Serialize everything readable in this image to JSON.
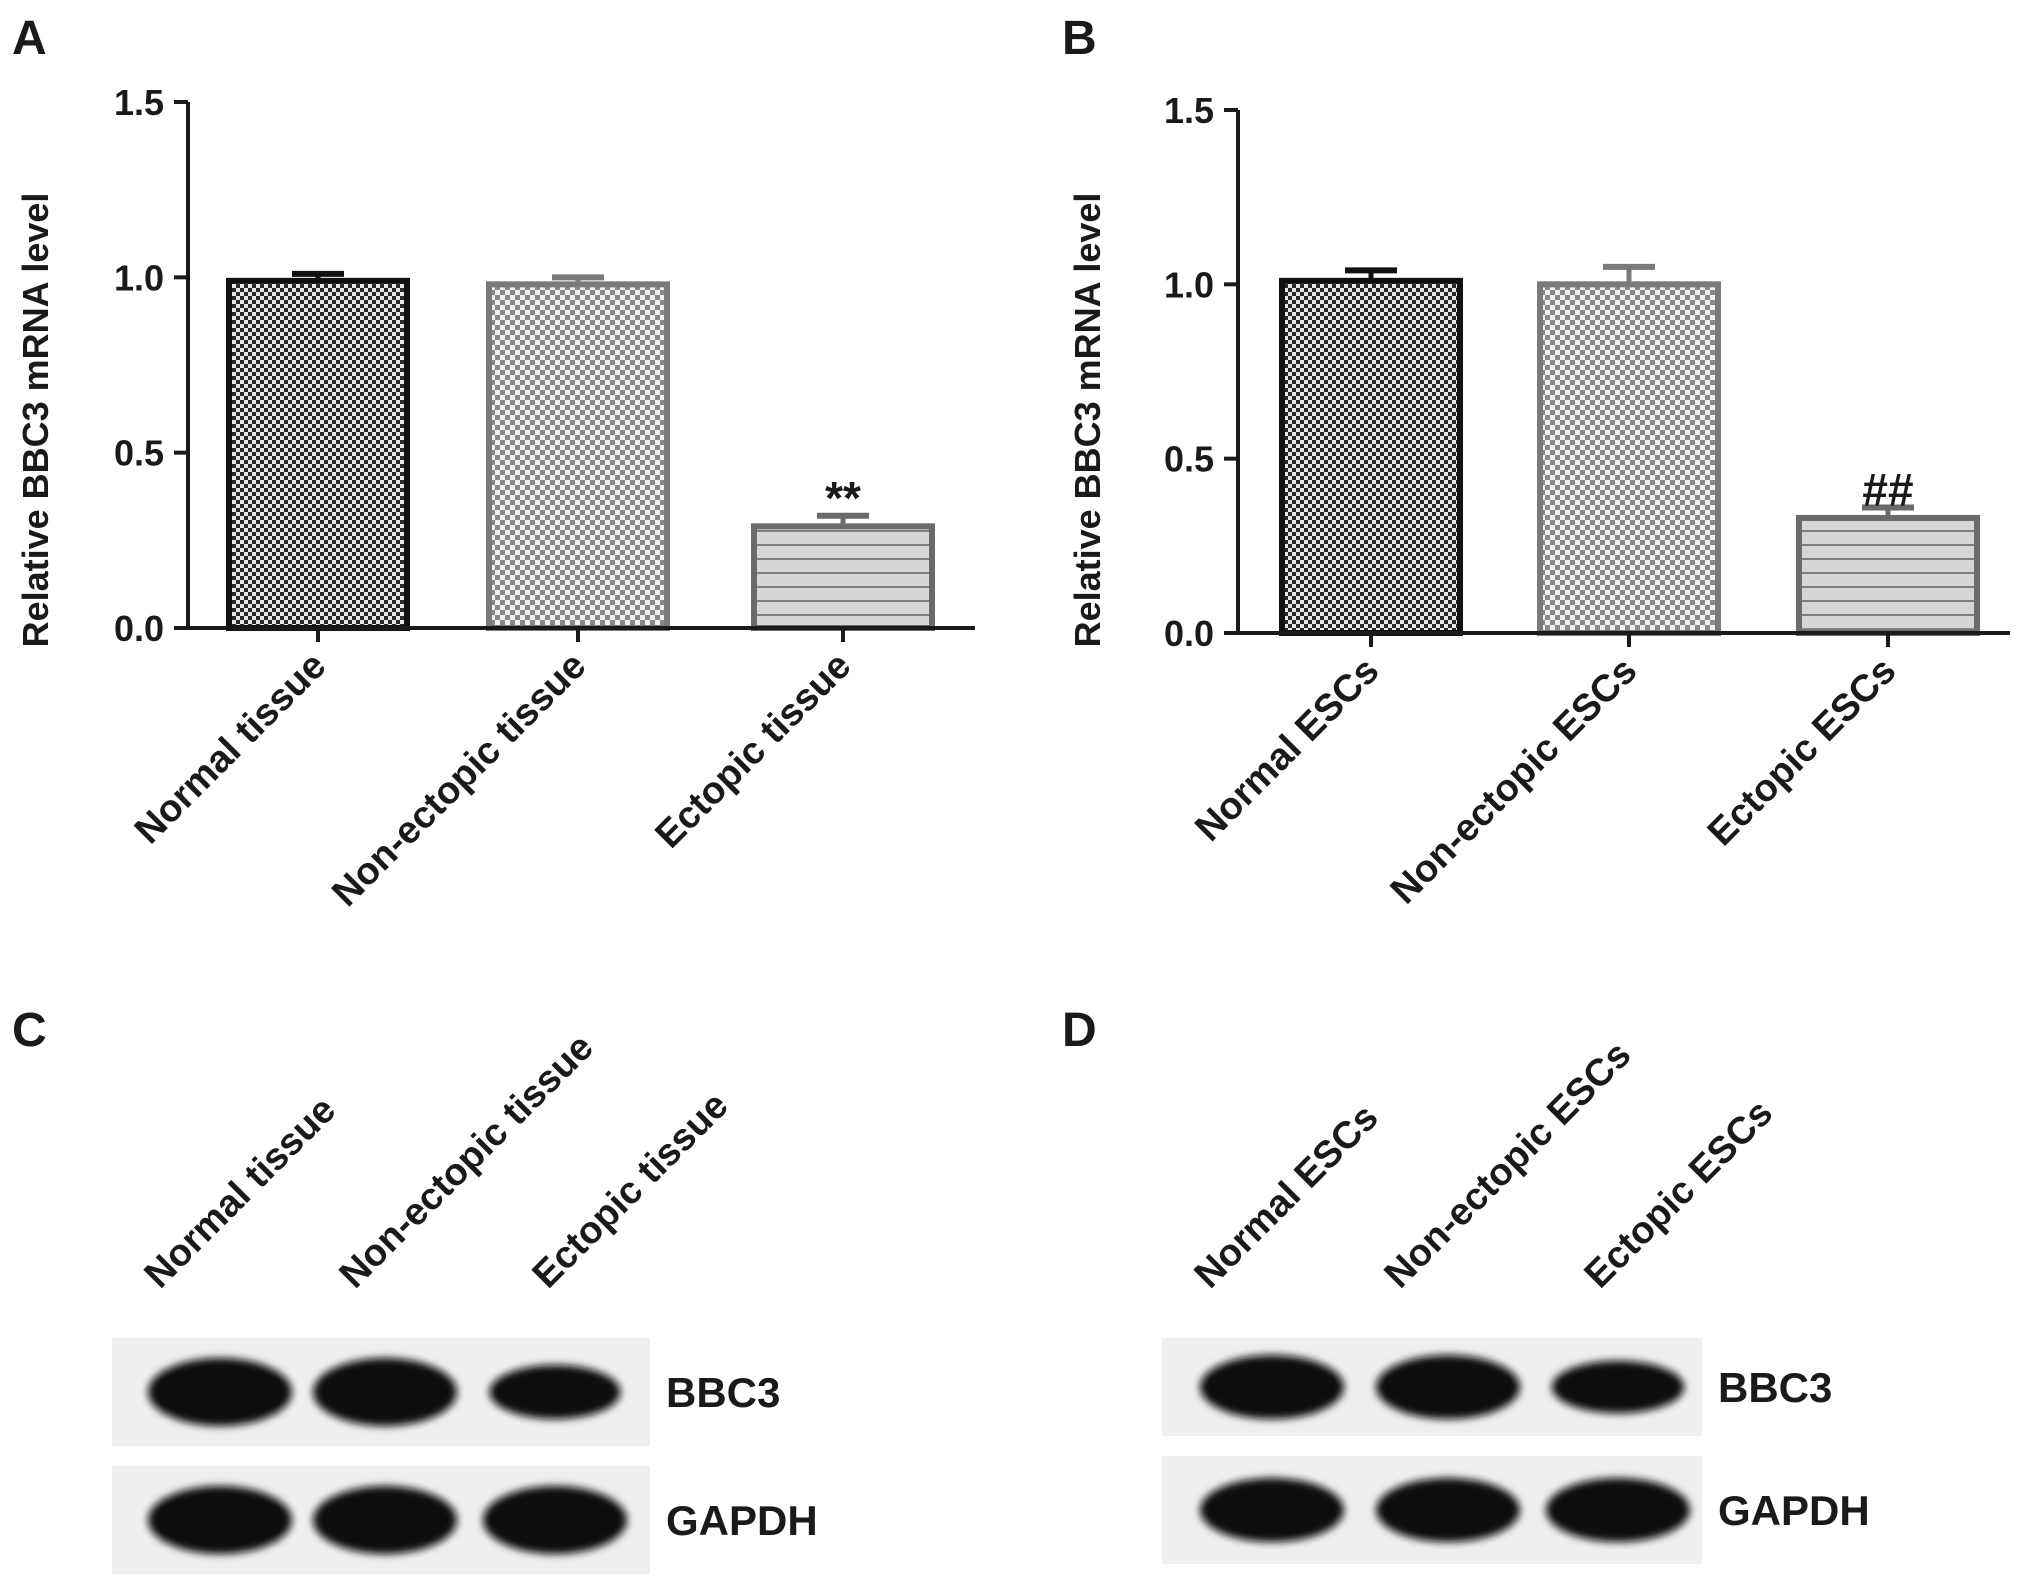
{
  "panels": {
    "A": "A",
    "B": "B",
    "C": "C",
    "D": "D"
  },
  "chart_data": [
    {
      "panel": "A",
      "type": "bar",
      "categories": [
        "Normal tissue",
        "Non-ectopic tissue",
        "Ectopic tissue"
      ],
      "values": [
        0.99,
        0.98,
        0.29
      ],
      "errors": [
        0.02,
        0.02,
        0.03
      ],
      "annotations": [
        "",
        "",
        "**"
      ],
      "title": "",
      "xlabel": "",
      "ylabel": "Relative BBC3 mRNA level",
      "ylim": [
        0,
        1.5
      ],
      "yticks": [
        0.0,
        0.5,
        1.0,
        1.5
      ],
      "ytick_labels": [
        "0.0",
        "0.5",
        "1.0",
        "1.5"
      ],
      "bar_styles": [
        "dark-checker",
        "light-checker",
        "horizontal-stripes"
      ],
      "grid": false
    },
    {
      "panel": "B",
      "type": "bar",
      "categories": [
        "Normal ESCs",
        "Non-ectopic ESCs",
        "Ectopic ESCs"
      ],
      "values": [
        1.01,
        1.0,
        0.33
      ],
      "errors": [
        0.03,
        0.05,
        0.03
      ],
      "annotations": [
        "",
        "",
        "##"
      ],
      "title": "",
      "xlabel": "",
      "ylabel": "Relative BBC3 mRNA level",
      "ylim": [
        0,
        1.5
      ],
      "yticks": [
        0.0,
        0.5,
        1.0,
        1.5
      ],
      "ytick_labels": [
        "0.0",
        "0.5",
        "1.0",
        "1.5"
      ],
      "bar_styles": [
        "dark-checker",
        "light-checker",
        "horizontal-stripes"
      ],
      "grid": false
    }
  ],
  "blots": {
    "C": {
      "lanes": [
        "Normal tissue",
        "Non-ectopic tissue",
        "Ectopic tissue"
      ],
      "bands": [
        "BBC3",
        "GAPDH"
      ],
      "intensity": {
        "BBC3": [
          1.0,
          1.0,
          0.55
        ],
        "GAPDH": [
          1.0,
          1.0,
          1.0
        ]
      }
    },
    "D": {
      "lanes": [
        "Normal ESCs",
        "Non-ectopic ESCs",
        "Ectopic ESCs"
      ],
      "bands": [
        "BBC3",
        "GAPDH"
      ],
      "intensity": {
        "BBC3": [
          1.0,
          1.0,
          0.6
        ],
        "GAPDH": [
          1.0,
          1.0,
          1.0
        ]
      }
    }
  },
  "colors": {
    "axis": "#1a1a1a",
    "bar1_edge": "#111111",
    "bar2_edge": "#7a7a7a",
    "bar3_edge": "#6a6a6a",
    "blot_bg": "#efefef",
    "band": "#111111"
  }
}
